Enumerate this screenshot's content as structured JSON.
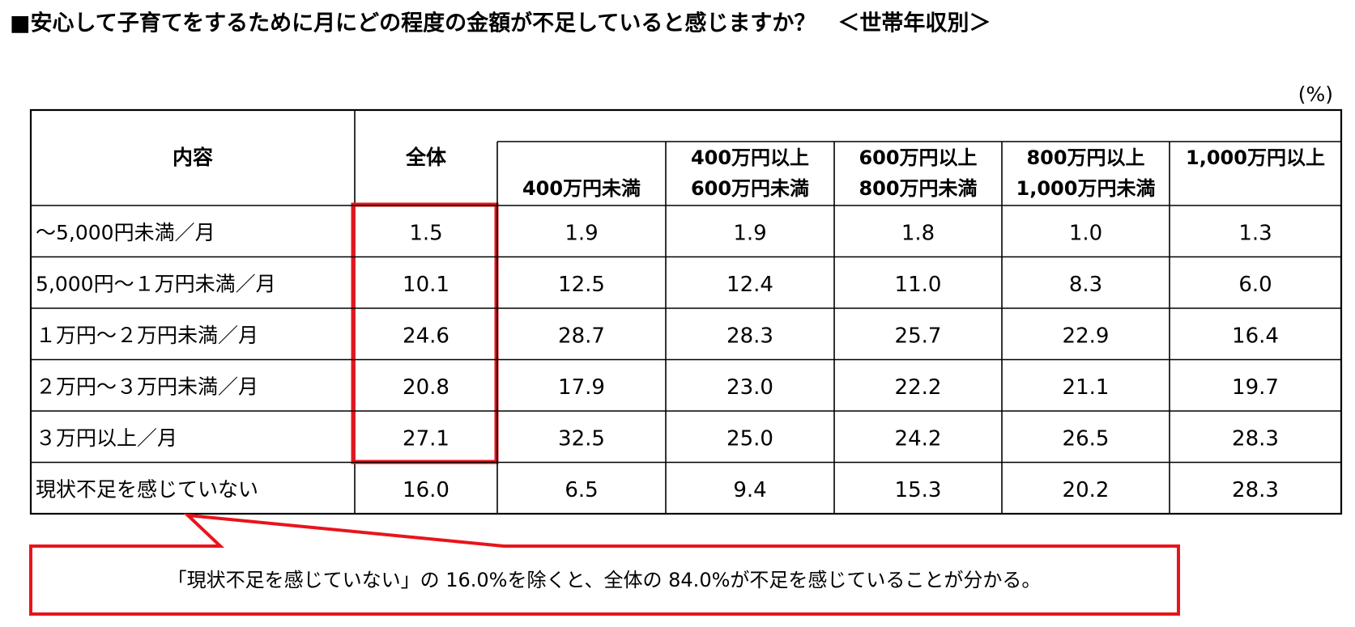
{
  "title": "■安心して子育てをするために月にどの程度の金額が不足していると感じますか？　＜世帯年収別＞",
  "unit": "(%)",
  "table": {
    "header": {
      "item": "内容",
      "total": "全体",
      "columns": [
        [
          "400万円未満"
        ],
        [
          "400万円以上",
          "600万円未満"
        ],
        [
          "600万円以上",
          "800万円未満"
        ],
        [
          "800万円以上",
          "1,000万円未満"
        ],
        [
          "1,000万円以上"
        ]
      ]
    },
    "rows": [
      {
        "label": "～5,000円未満／月",
        "values": [
          "1.5",
          "1.9",
          "1.9",
          "1.8",
          "1.0",
          "1.3"
        ]
      },
      {
        "label": "5,000円～１万円未満／月",
        "values": [
          "10.1",
          "12.5",
          "12.4",
          "11.0",
          "8.3",
          "6.0"
        ]
      },
      {
        "label": "１万円～２万円未満／月",
        "values": [
          "24.6",
          "28.7",
          "28.3",
          "25.7",
          "22.9",
          "16.4"
        ]
      },
      {
        "label": "２万円～３万円未満／月",
        "values": [
          "20.8",
          "17.9",
          "23.0",
          "22.2",
          "21.1",
          "19.7"
        ]
      },
      {
        "label": "３万円以上／月",
        "values": [
          "27.1",
          "32.5",
          "25.0",
          "24.2",
          "26.5",
          "28.3"
        ]
      },
      {
        "label": "現状不足を感じていない",
        "values": [
          "16.0",
          "6.5",
          "9.4",
          "15.3",
          "20.2",
          "28.3"
        ]
      }
    ]
  },
  "note": "「現状不足を感じていない」の 16.0%を除くと、全体の 84.0%が不足を感じていることが分かる。"
}
